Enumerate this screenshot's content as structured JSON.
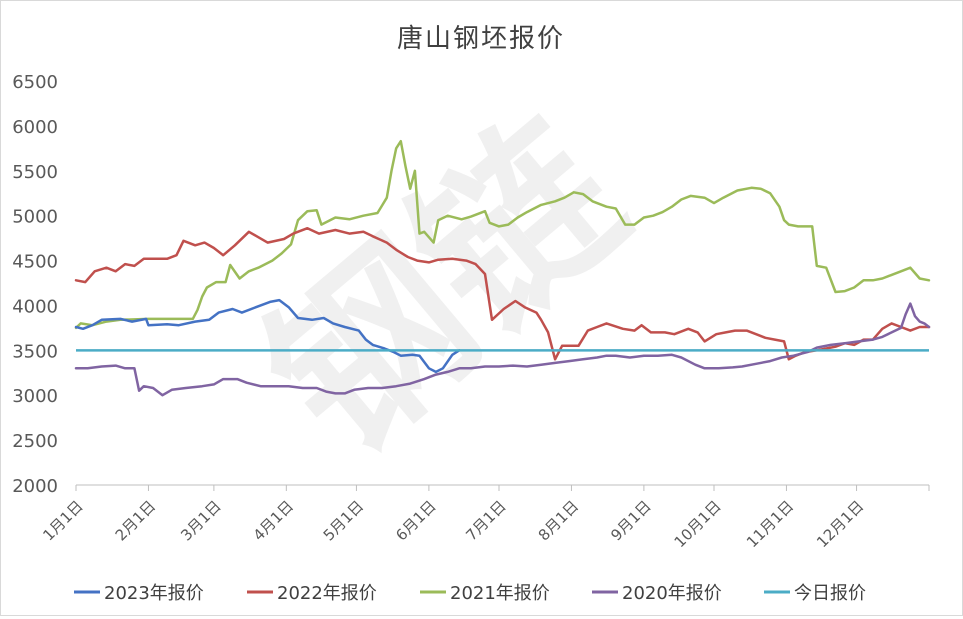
{
  "chart_data": {
    "type": "line",
    "title": "唐山钢坯报价",
    "xlabel": "",
    "ylabel": "",
    "ylim": [
      2000,
      6500
    ],
    "yticks": [
      2000,
      2500,
      3000,
      3500,
      4000,
      4500,
      5000,
      5500,
      6000,
      6500
    ],
    "xlim": [
      1,
      366
    ],
    "xticks": [
      {
        "label": "1月1日",
        "day": 1
      },
      {
        "label": "2月1日",
        "day": 32
      },
      {
        "label": "3月1日",
        "day": 60
      },
      {
        "label": "4月1日",
        "day": 91
      },
      {
        "label": "5月1日",
        "day": 121
      },
      {
        "label": "6月1日",
        "day": 152
      },
      {
        "label": "7月1日",
        "day": 182
      },
      {
        "label": "8月1日",
        "day": 213
      },
      {
        "label": "9月1日",
        "day": 244
      },
      {
        "label": "10月1日",
        "day": 274
      },
      {
        "label": "11月1日",
        "day": 305
      },
      {
        "label": "12月1日",
        "day": 335
      }
    ],
    "grid": false,
    "legend_position": "bottom",
    "watermark": "钢链",
    "series": [
      {
        "name": "2023年报价",
        "color": "#4472c4",
        "points": [
          [
            1,
            3760
          ],
          [
            4,
            3740
          ],
          [
            8,
            3780
          ],
          [
            12,
            3840
          ],
          [
            20,
            3850
          ],
          [
            25,
            3820
          ],
          [
            31,
            3850
          ],
          [
            32,
            3780
          ],
          [
            40,
            3790
          ],
          [
            45,
            3780
          ],
          [
            52,
            3820
          ],
          [
            58,
            3840
          ],
          [
            62,
            3920
          ],
          [
            68,
            3960
          ],
          [
            72,
            3920
          ],
          [
            78,
            3980
          ],
          [
            84,
            4040
          ],
          [
            88,
            4060
          ],
          [
            92,
            3980
          ],
          [
            96,
            3860
          ],
          [
            102,
            3840
          ],
          [
            107,
            3860
          ],
          [
            111,
            3800
          ],
          [
            116,
            3760
          ],
          [
            122,
            3720
          ],
          [
            125,
            3620
          ],
          [
            128,
            3560
          ],
          [
            133,
            3520
          ],
          [
            137,
            3480
          ],
          [
            140,
            3440
          ],
          [
            145,
            3450
          ],
          [
            148,
            3440
          ],
          [
            152,
            3300
          ],
          [
            155,
            3260
          ],
          [
            158,
            3300
          ],
          [
            162,
            3450
          ],
          [
            165,
            3500
          ]
        ]
      },
      {
        "name": "2022年报价",
        "color": "#c0504d",
        "points": [
          [
            1,
            4280
          ],
          [
            5,
            4260
          ],
          [
            9,
            4380
          ],
          [
            14,
            4420
          ],
          [
            18,
            4380
          ],
          [
            22,
            4460
          ],
          [
            26,
            4440
          ],
          [
            30,
            4520
          ],
          [
            40,
            4520
          ],
          [
            44,
            4560
          ],
          [
            47,
            4720
          ],
          [
            52,
            4670
          ],
          [
            56,
            4700
          ],
          [
            60,
            4640
          ],
          [
            64,
            4560
          ],
          [
            69,
            4670
          ],
          [
            75,
            4820
          ],
          [
            79,
            4760
          ],
          [
            83,
            4700
          ],
          [
            90,
            4740
          ],
          [
            94,
            4800
          ],
          [
            100,
            4860
          ],
          [
            105,
            4800
          ],
          [
            112,
            4840
          ],
          [
            118,
            4800
          ],
          [
            124,
            4820
          ],
          [
            128,
            4770
          ],
          [
            134,
            4700
          ],
          [
            138,
            4620
          ],
          [
            143,
            4540
          ],
          [
            147,
            4500
          ],
          [
            152,
            4480
          ],
          [
            156,
            4510
          ],
          [
            162,
            4520
          ],
          [
            168,
            4500
          ],
          [
            172,
            4460
          ],
          [
            176,
            4350
          ],
          [
            179,
            3840
          ],
          [
            184,
            3960
          ],
          [
            189,
            4050
          ],
          [
            193,
            3980
          ],
          [
            198,
            3920
          ],
          [
            200,
            3840
          ],
          [
            203,
            3700
          ],
          [
            206,
            3400
          ],
          [
            209,
            3550
          ],
          [
            216,
            3550
          ],
          [
            220,
            3720
          ],
          [
            224,
            3760
          ],
          [
            228,
            3800
          ],
          [
            235,
            3740
          ],
          [
            240,
            3720
          ],
          [
            243,
            3780
          ],
          [
            247,
            3700
          ],
          [
            253,
            3700
          ],
          [
            257,
            3680
          ],
          [
            263,
            3740
          ],
          [
            267,
            3700
          ],
          [
            270,
            3600
          ],
          [
            275,
            3680
          ],
          [
            279,
            3700
          ],
          [
            283,
            3720
          ],
          [
            288,
            3720
          ],
          [
            292,
            3680
          ],
          [
            296,
            3640
          ],
          [
            300,
            3620
          ],
          [
            304,
            3600
          ],
          [
            306,
            3400
          ],
          [
            309,
            3440
          ],
          [
            313,
            3480
          ],
          [
            318,
            3500
          ],
          [
            322,
            3520
          ],
          [
            326,
            3540
          ],
          [
            330,
            3580
          ],
          [
            334,
            3560
          ],
          [
            338,
            3620
          ],
          [
            342,
            3620
          ],
          [
            346,
            3740
          ],
          [
            350,
            3800
          ],
          [
            354,
            3760
          ],
          [
            358,
            3720
          ],
          [
            362,
            3760
          ],
          [
            366,
            3760
          ]
        ]
      },
      {
        "name": "2021年报价",
        "color": "#9bbb59",
        "points": [
          [
            1,
            3750
          ],
          [
            3,
            3800
          ],
          [
            8,
            3780
          ],
          [
            14,
            3820
          ],
          [
            20,
            3840
          ],
          [
            32,
            3850
          ],
          [
            45,
            3850
          ],
          [
            51,
            3850
          ],
          [
            53,
            3950
          ],
          [
            55,
            4100
          ],
          [
            57,
            4200
          ],
          [
            61,
            4260
          ],
          [
            65,
            4260
          ],
          [
            67,
            4450
          ],
          [
            71,
            4300
          ],
          [
            75,
            4380
          ],
          [
            79,
            4420
          ],
          [
            85,
            4500
          ],
          [
            89,
            4580
          ],
          [
            93,
            4680
          ],
          [
            96,
            4950
          ],
          [
            100,
            5050
          ],
          [
            104,
            5060
          ],
          [
            106,
            4900
          ],
          [
            112,
            4980
          ],
          [
            118,
            4960
          ],
          [
            124,
            5000
          ],
          [
            130,
            5030
          ],
          [
            134,
            5200
          ],
          [
            136,
            5500
          ],
          [
            138,
            5750
          ],
          [
            140,
            5830
          ],
          [
            142,
            5550
          ],
          [
            144,
            5300
          ],
          [
            146,
            5500
          ],
          [
            148,
            4800
          ],
          [
            150,
            4820
          ],
          [
            152,
            4760
          ],
          [
            154,
            4700
          ],
          [
            156,
            4950
          ],
          [
            160,
            5000
          ],
          [
            166,
            4960
          ],
          [
            170,
            4990
          ],
          [
            176,
            5050
          ],
          [
            178,
            4920
          ],
          [
            182,
            4880
          ],
          [
            186,
            4900
          ],
          [
            190,
            4980
          ],
          [
            194,
            5040
          ],
          [
            200,
            5120
          ],
          [
            206,
            5160
          ],
          [
            210,
            5200
          ],
          [
            214,
            5260
          ],
          [
            218,
            5240
          ],
          [
            222,
            5160
          ],
          [
            228,
            5100
          ],
          [
            232,
            5080
          ],
          [
            236,
            4900
          ],
          [
            240,
            4900
          ],
          [
            244,
            4980
          ],
          [
            248,
            5000
          ],
          [
            252,
            5040
          ],
          [
            256,
            5100
          ],
          [
            260,
            5180
          ],
          [
            264,
            5220
          ],
          [
            270,
            5200
          ],
          [
            274,
            5140
          ],
          [
            278,
            5200
          ],
          [
            284,
            5280
          ],
          [
            290,
            5310
          ],
          [
            294,
            5300
          ],
          [
            298,
            5250
          ],
          [
            302,
            5100
          ],
          [
            304,
            4950
          ],
          [
            306,
            4900
          ],
          [
            310,
            4880
          ],
          [
            316,
            4880
          ],
          [
            318,
            4440
          ],
          [
            322,
            4420
          ],
          [
            326,
            4150
          ],
          [
            330,
            4160
          ],
          [
            334,
            4200
          ],
          [
            338,
            4280
          ],
          [
            342,
            4280
          ],
          [
            346,
            4300
          ],
          [
            350,
            4340
          ],
          [
            354,
            4380
          ],
          [
            358,
            4420
          ],
          [
            362,
            4300
          ],
          [
            366,
            4280
          ]
        ]
      },
      {
        "name": "2020年报价",
        "color": "#8064a2",
        "points": [
          [
            1,
            3300
          ],
          [
            6,
            3300
          ],
          [
            12,
            3320
          ],
          [
            18,
            3330
          ],
          [
            22,
            3300
          ],
          [
            26,
            3300
          ],
          [
            28,
            3050
          ],
          [
            30,
            3100
          ],
          [
            34,
            3080
          ],
          [
            38,
            3000
          ],
          [
            42,
            3060
          ],
          [
            48,
            3080
          ],
          [
            55,
            3100
          ],
          [
            60,
            3120
          ],
          [
            64,
            3180
          ],
          [
            70,
            3180
          ],
          [
            74,
            3140
          ],
          [
            80,
            3100
          ],
          [
            86,
            3100
          ],
          [
            92,
            3100
          ],
          [
            98,
            3080
          ],
          [
            104,
            3080
          ],
          [
            108,
            3040
          ],
          [
            112,
            3020
          ],
          [
            116,
            3020
          ],
          [
            120,
            3060
          ],
          [
            126,
            3080
          ],
          [
            132,
            3080
          ],
          [
            138,
            3100
          ],
          [
            144,
            3130
          ],
          [
            150,
            3180
          ],
          [
            155,
            3230
          ],
          [
            160,
            3260
          ],
          [
            165,
            3300
          ],
          [
            170,
            3300
          ],
          [
            176,
            3320
          ],
          [
            182,
            3320
          ],
          [
            188,
            3330
          ],
          [
            194,
            3320
          ],
          [
            200,
            3340
          ],
          [
            206,
            3360
          ],
          [
            212,
            3380
          ],
          [
            218,
            3400
          ],
          [
            224,
            3420
          ],
          [
            228,
            3440
          ],
          [
            232,
            3440
          ],
          [
            238,
            3420
          ],
          [
            244,
            3440
          ],
          [
            250,
            3440
          ],
          [
            256,
            3450
          ],
          [
            260,
            3420
          ],
          [
            266,
            3340
          ],
          [
            270,
            3300
          ],
          [
            276,
            3300
          ],
          [
            282,
            3310
          ],
          [
            286,
            3320
          ],
          [
            292,
            3350
          ],
          [
            298,
            3380
          ],
          [
            303,
            3420
          ],
          [
            308,
            3440
          ],
          [
            314,
            3480
          ],
          [
            318,
            3530
          ],
          [
            324,
            3560
          ],
          [
            330,
            3580
          ],
          [
            336,
            3600
          ],
          [
            342,
            3620
          ],
          [
            346,
            3650
          ],
          [
            350,
            3700
          ],
          [
            354,
            3750
          ],
          [
            356,
            3900
          ],
          [
            358,
            4020
          ],
          [
            360,
            3880
          ],
          [
            362,
            3820
          ],
          [
            364,
            3800
          ],
          [
            366,
            3760
          ]
        ]
      },
      {
        "name": "今日报价",
        "color": "#4bacc6",
        "value": 3500
      }
    ]
  }
}
